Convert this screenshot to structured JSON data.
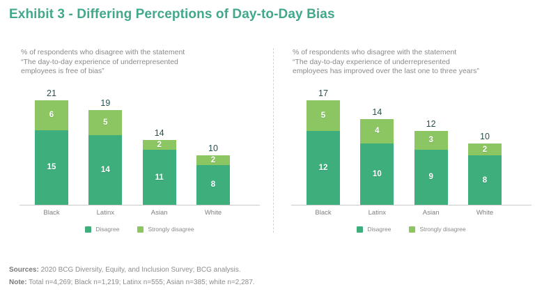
{
  "title": "Exhibit 3 - Differing Perceptions of Day-to-Day Bias",
  "colors": {
    "title_accent": "#42A88B",
    "disagree": "#3DAE7C",
    "strongly_disagree": "#8CC663",
    "total_label": "#27514D",
    "muted_text": "#8A8A8A",
    "axis_line": "#CBCBCB"
  },
  "chart_data": [
    {
      "type": "bar",
      "stacked": true,
      "subtitle": "% of respondents who disagree with the statement\n“The day-to-day experience of underrepresented\nemployees is free of bias”",
      "categories": [
        "Black",
        "Latinx",
        "Asian",
        "White"
      ],
      "series": [
        {
          "name": "Disagree",
          "color": "#3DAE7C",
          "values": [
            15,
            14,
            11,
            8
          ]
        },
        {
          "name": "Strongly disagree",
          "color": "#8CC663",
          "values": [
            6,
            5,
            2,
            2
          ]
        }
      ],
      "totals": [
        21,
        19,
        14,
        10
      ],
      "xlabel": "",
      "ylabel": "% of respondents",
      "ylim": [
        0,
        21
      ],
      "grid": false,
      "legend_position": "bottom"
    },
    {
      "type": "bar",
      "stacked": true,
      "subtitle": "% of respondents who disagree with the statement\n“The day-to-day experience of underrepresented\nemployees has improved over the last one to three years”",
      "categories": [
        "Black",
        "Latinx",
        "Asian",
        "White"
      ],
      "series": [
        {
          "name": "Disagree",
          "color": "#3DAE7C",
          "values": [
            12,
            10,
            9,
            8
          ]
        },
        {
          "name": "Strongly disagree",
          "color": "#8CC663",
          "values": [
            5,
            4,
            3,
            2
          ]
        }
      ],
      "totals": [
        17,
        14,
        12,
        10
      ],
      "xlabel": "",
      "ylabel": "% of respondents",
      "ylim": [
        0,
        17
      ],
      "grid": false,
      "legend_position": "bottom"
    }
  ],
  "footer": {
    "sources_label": "Sources:",
    "sources_text": "2020 BCG Diversity, Equity, and Inclusion Survey; BCG analysis.",
    "note_label": "Note:",
    "note_text": "Total n=4,269; Black n=1,219; Latinx n=555; Asian n=385; white n=2,287."
  }
}
